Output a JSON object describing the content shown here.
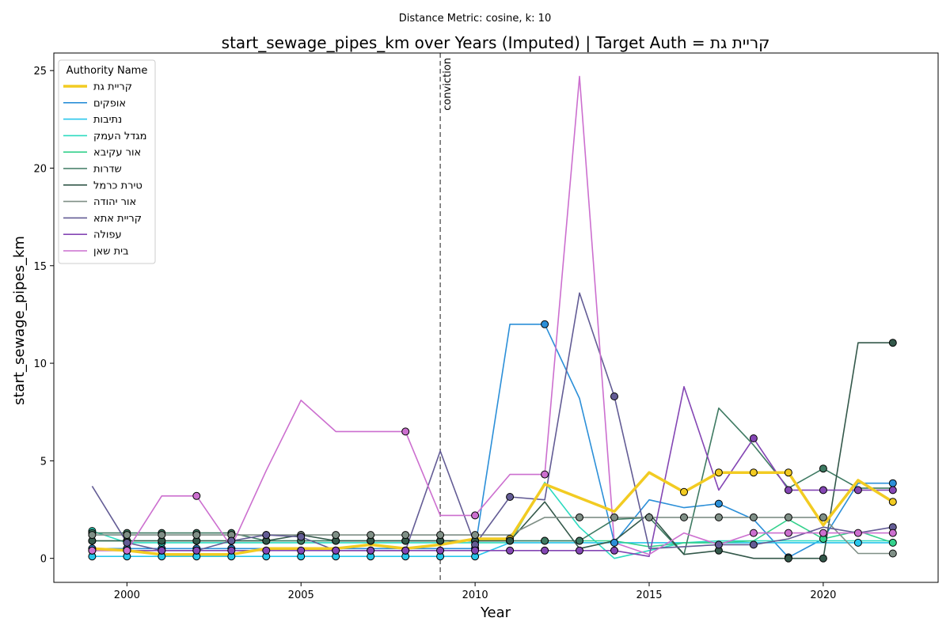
{
  "chart_data": {
    "type": "line",
    "suptitle": "Distance Metric: cosine, k: 10",
    "title": "start_sewage_pipes_km over Years (Imputed) | Target Auth = קריית גת",
    "xlabel": "Year",
    "ylabel": "start_sewage_pipes_km",
    "xlim": [
      1997.9,
      2023.3
    ],
    "ylim": [
      -1.23,
      25.9
    ],
    "xticks": [
      2000,
      2005,
      2010,
      2015,
      2020
    ],
    "yticks": [
      0,
      5,
      10,
      15,
      20,
      25
    ],
    "grid": false,
    "legend_title": "Authority Name",
    "legend_position": "upper-left",
    "vline": {
      "x": 2009,
      "label": "conviction",
      "color": "#666666"
    },
    "x": [
      1999,
      2000,
      2001,
      2002,
      2003,
      2004,
      2005,
      2006,
      2007,
      2008,
      2009,
      2010,
      2011,
      2012,
      2013,
      2014,
      2015,
      2016,
      2017,
      2018,
      2019,
      2020,
      2021,
      2022
    ],
    "series": [
      {
        "name": "קריית גת",
        "color": "#f2cb22",
        "target": true,
        "values": [
          0.5,
          0.4,
          0.2,
          0.2,
          0.2,
          0.5,
          0.5,
          0.5,
          0.7,
          0.5,
          0.7,
          1.0,
          1.0,
          3.8,
          3.1,
          2.4,
          4.4,
          3.4,
          4.4,
          4.4,
          4.4,
          1.7,
          4.0,
          2.9
        ],
        "imputed": [
          false,
          false,
          false,
          false,
          false,
          false,
          false,
          false,
          false,
          false,
          false,
          false,
          true,
          false,
          false,
          false,
          false,
          true,
          true,
          true,
          true,
          false,
          false,
          true
        ]
      },
      {
        "name": "אופקים",
        "color": "#2b8fd8",
        "values": [
          0.5,
          0.5,
          0.5,
          0.5,
          0.5,
          0.5,
          0.5,
          0.5,
          0.5,
          0.5,
          0.5,
          0.5,
          12.0,
          12.0,
          8.2,
          0.8,
          3.0,
          2.6,
          2.8,
          2.0,
          0.05,
          1.0,
          3.85,
          3.85
        ],
        "imputed": [
          true,
          true,
          true,
          true,
          true,
          false,
          false,
          false,
          false,
          false,
          false,
          true,
          false,
          true,
          false,
          true,
          false,
          false,
          true,
          false,
          true,
          false,
          false,
          true
        ]
      },
      {
        "name": "נתיבות",
        "color": "#28c6ec",
        "values": [
          0.1,
          0.1,
          0.1,
          0.1,
          0.1,
          0.1,
          0.1,
          0.1,
          0.1,
          0.1,
          0.1,
          0.1,
          0.8,
          0.8,
          0.8,
          0.8,
          0.8,
          0.8,
          0.8,
          0.8,
          0.8,
          0.8,
          0.8,
          0.8
        ],
        "imputed": [
          true,
          true,
          true,
          true,
          true,
          true,
          true,
          true,
          true,
          true,
          true,
          true,
          false,
          false,
          false,
          false,
          false,
          false,
          false,
          false,
          false,
          false,
          true,
          false
        ]
      },
      {
        "name": "מגדל העמק",
        "color": "#2ddbc0",
        "values": [
          1.4,
          0.8,
          0.8,
          0.8,
          0.8,
          0.8,
          0.8,
          0.8,
          0.8,
          0.8,
          0.8,
          0.8,
          0.8,
          3.9,
          1.6,
          0.0,
          0.4,
          0.8,
          0.9,
          0.9,
          0.9,
          0.9,
          0.9,
          0.9
        ],
        "imputed": [
          true,
          false,
          true,
          false,
          false,
          false,
          false,
          false,
          false,
          false,
          false,
          false,
          false,
          false,
          false,
          false,
          false,
          false,
          false,
          false,
          false,
          false,
          false,
          false
        ]
      },
      {
        "name": "אור עקיבא",
        "color": "#34d18c",
        "values": [
          0.9,
          0.9,
          0.9,
          0.9,
          0.9,
          0.9,
          0.9,
          0.9,
          0.9,
          0.9,
          0.9,
          0.9,
          0.9,
          0.9,
          0.9,
          0.9,
          0.6,
          0.8,
          0.8,
          0.9,
          2.0,
          1.0,
          1.4,
          0.8
        ],
        "imputed": [
          true,
          true,
          true,
          true,
          true,
          true,
          true,
          true,
          true,
          true,
          true,
          true,
          true,
          true,
          true,
          false,
          false,
          false,
          false,
          false,
          false,
          true,
          false,
          true
        ]
      },
      {
        "name": "שדרות",
        "color": "#3e7a62",
        "values": [
          1.3,
          1.3,
          1.3,
          1.3,
          1.3,
          0.9,
          0.9,
          0.9,
          0.9,
          0.9,
          0.9,
          0.9,
          0.9,
          0.9,
          0.9,
          2.0,
          2.1,
          0.2,
          7.7,
          5.8,
          3.6,
          4.6,
          3.6,
          3.6
        ],
        "imputed": [
          true,
          true,
          true,
          true,
          true,
          true,
          true,
          true,
          true,
          true,
          true,
          true,
          true,
          true,
          true,
          false,
          false,
          false,
          false,
          false,
          false,
          true,
          false,
          false
        ]
      },
      {
        "name": "טירת כרמל",
        "color": "#33584a",
        "values": [
          0.9,
          0.9,
          0.9,
          0.9,
          0.9,
          0.9,
          1.2,
          0.9,
          0.9,
          0.9,
          0.9,
          0.9,
          0.9,
          2.9,
          0.5,
          0.9,
          2.3,
          0.2,
          0.4,
          0.0,
          0.0,
          0.0,
          11.05,
          11.05
        ],
        "imputed": [
          true,
          true,
          true,
          true,
          true,
          true,
          true,
          true,
          true,
          true,
          true,
          true,
          true,
          false,
          false,
          false,
          false,
          false,
          true,
          false,
          true,
          true,
          false,
          true
        ]
      },
      {
        "name": "אור יהודה",
        "color": "#7f8f86",
        "values": [
          1.2,
          1.2,
          1.2,
          1.2,
          1.2,
          1.2,
          1.2,
          1.2,
          1.2,
          1.2,
          1.2,
          1.2,
          1.2,
          2.1,
          2.1,
          2.1,
          2.1,
          2.1,
          2.1,
          2.1,
          2.1,
          2.1,
          0.25,
          0.25
        ],
        "imputed": [
          true,
          true,
          true,
          true,
          true,
          true,
          true,
          true,
          true,
          true,
          true,
          true,
          false,
          false,
          true,
          true,
          true,
          true,
          true,
          true,
          true,
          true,
          false,
          true
        ]
      },
      {
        "name": "קריית אתא",
        "color": "#635c95",
        "values": [
          3.7,
          0.8,
          0.4,
          0.4,
          0.9,
          1.2,
          1.1,
          0.4,
          0.4,
          0.4,
          5.5,
          0.7,
          3.15,
          3.0,
          13.6,
          8.3,
          0.5,
          0.6,
          0.7,
          0.7,
          1.0,
          1.6,
          1.3,
          1.6
        ],
        "imputed": [
          false,
          true,
          true,
          true,
          true,
          true,
          true,
          true,
          true,
          true,
          false,
          true,
          true,
          false,
          false,
          true,
          false,
          false,
          true,
          true,
          false,
          false,
          false,
          true
        ]
      },
      {
        "name": "עפולה",
        "color": "#8446b4",
        "values": [
          0.4,
          0.4,
          0.4,
          0.4,
          0.4,
          0.4,
          0.4,
          0.4,
          0.4,
          0.4,
          0.4,
          0.4,
          0.4,
          0.4,
          0.4,
          0.4,
          0.1,
          8.8,
          3.5,
          6.15,
          3.5,
          3.5,
          3.5,
          3.5
        ],
        "imputed": [
          true,
          true,
          true,
          true,
          true,
          true,
          true,
          true,
          true,
          true,
          true,
          true,
          true,
          true,
          true,
          true,
          false,
          false,
          false,
          true,
          true,
          true,
          true,
          true
        ]
      },
      {
        "name": "בית שאן",
        "color": "#cc6fcf",
        "values": [
          0.4,
          0.4,
          3.2,
          3.2,
          0.6,
          4.5,
          8.1,
          6.5,
          6.5,
          6.5,
          2.2,
          2.2,
          4.3,
          4.3,
          24.7,
          0.8,
          0.2,
          1.3,
          0.7,
          1.3,
          1.3,
          1.3,
          1.3,
          1.3
        ],
        "imputed": [
          true,
          true,
          false,
          true,
          false,
          false,
          false,
          false,
          false,
          true,
          false,
          true,
          false,
          true,
          false,
          false,
          false,
          false,
          false,
          true,
          true,
          true,
          true,
          true
        ]
      }
    ]
  }
}
